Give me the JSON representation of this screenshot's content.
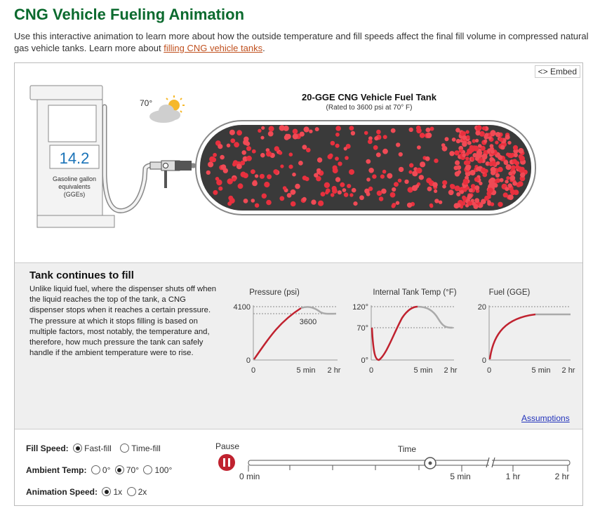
{
  "header": {
    "title": "CNG Vehicle Fueling Animation",
    "intro": "Use this interactive animation to learn more about how the outside temperature and fill speeds affect the final fill volume in compressed natural gas vehicle tanks. Learn more about",
    "link_text": "filling CNG vehicle tanks",
    "link_end": "."
  },
  "embed_label": "<> Embed",
  "pump": {
    "reading": "14.2",
    "unit_line1": "Gasoline gallon",
    "unit_line2": "equivalents",
    "unit_line3": "(GGEs)"
  },
  "weather": {
    "temp": "70°",
    "icon": "partly-sunny-icon"
  },
  "tank": {
    "title": "20-GGE CNG Vehicle Fuel Tank",
    "subtitle": "(Rated to 3600 psi at 70° F)",
    "fill_fraction": 1.0
  },
  "panel": {
    "title": "Tank continues to fill",
    "text": "Unlike liquid fuel, where the dispenser shuts off when the liquid reaches the top of the tank, a CNG dispenser stops when it reaches a certain pressure. The pressure at which it stops filling is based on multiple factors, most notably, the temperature and, therefore, how much pressure the tank can safely handle if the ambient temperature were to rise.",
    "assumptions": "Assumptions"
  },
  "chart_data": [
    {
      "type": "line",
      "title": "Pressure (psi)",
      "y_ticks": [
        "4100",
        "0"
      ],
      "annotation": "3600",
      "x_ticks": [
        "0",
        "5 min",
        "2 hr"
      ]
    },
    {
      "type": "line",
      "title": "Internal Tank Temp (°F)",
      "y_ticks": [
        "120°",
        "70°",
        "0°"
      ],
      "x_ticks": [
        "0",
        "5 min",
        "2 hr"
      ]
    },
    {
      "type": "line",
      "title": "Fuel (GGE)",
      "y_ticks": [
        "20",
        "0"
      ],
      "x_ticks": [
        "0",
        "5 min",
        "2 hr"
      ]
    }
  ],
  "controls": {
    "fill_speed": {
      "label": "Fill Speed:",
      "options": [
        "Fast-fill",
        "Time-fill"
      ],
      "selected": "Fast-fill"
    },
    "ambient_temp": {
      "label": "Ambient Temp:",
      "options": [
        "0°",
        "70°",
        "100°"
      ],
      "selected": "70°"
    },
    "anim_speed": {
      "label": "Animation Speed:",
      "options": [
        "1x",
        "2x"
      ],
      "selected": "1x"
    },
    "pause_label": "Pause",
    "time_label": "Time",
    "timeline_ticks": [
      "0 min",
      "5 min",
      "1 hr",
      "2 hr"
    ],
    "timeline_position": "5 min"
  },
  "colors": {
    "brand_green": "#0b6a2e",
    "accent_red": "#c0222f",
    "link_orange": "#c0501e"
  }
}
